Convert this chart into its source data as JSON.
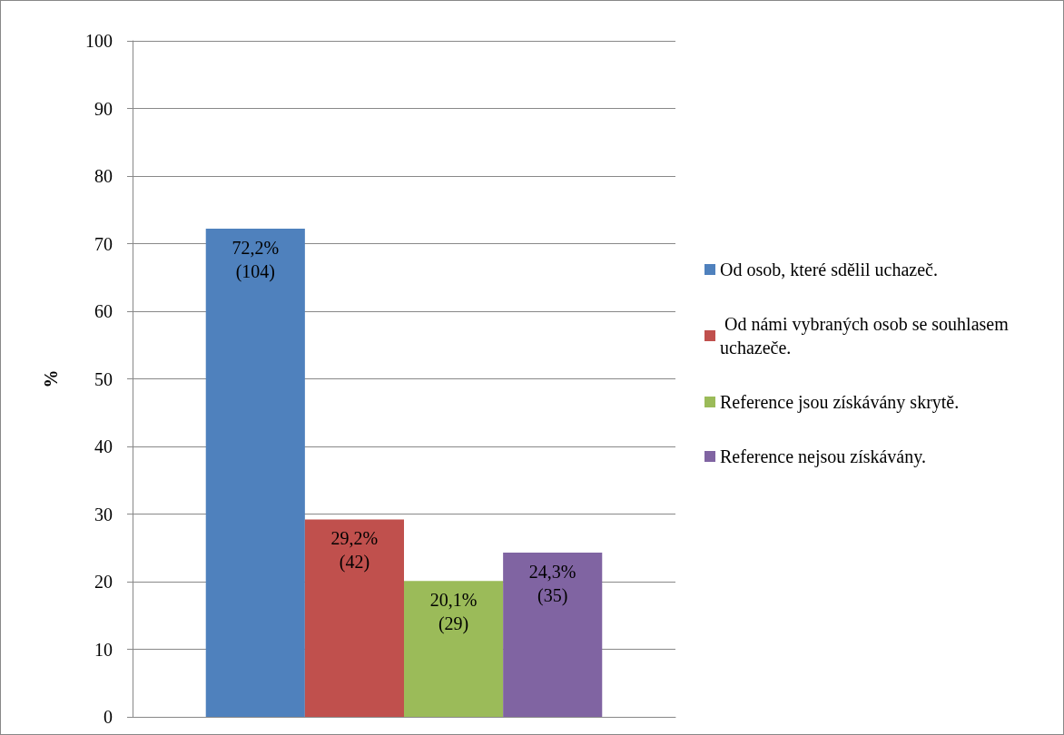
{
  "chart_data": {
    "type": "bar",
    "ylabel": "%",
    "categories": [
      null
    ],
    "series": [
      {
        "name": "Od osob, které sdělil uchazeč.",
        "color": "#4f81bd",
        "values": [
          72.2
        ],
        "value_labels": [
          "72,2%\n(104)"
        ]
      },
      {
        "name": " Od námi vybraných osob se souhlasem uchazeče.",
        "color": "#c0504d",
        "values": [
          29.2
        ],
        "value_labels": [
          "29,2%\n(42)"
        ]
      },
      {
        "name": "Reference jsou získávány skrytě.",
        "color": "#9bbb59",
        "values": [
          20.1
        ],
        "value_labels": [
          "20,1%\n(29)"
        ]
      },
      {
        "name": "Reference nejsou získávány.",
        "color": "#8064a2",
        "values": [
          24.3
        ],
        "value_labels": [
          "24,3%\n(35)"
        ]
      }
    ],
    "ylim": [
      0,
      100
    ],
    "yticks": [
      0,
      10,
      20,
      30,
      40,
      50,
      60,
      70,
      80,
      90,
      100
    ],
    "grid": "y",
    "legend": "right"
  }
}
